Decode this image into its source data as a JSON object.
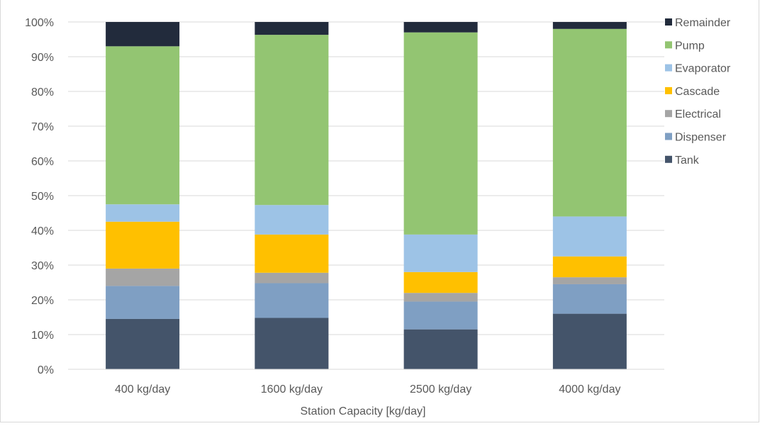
{
  "chart_data": {
    "type": "bar",
    "stacked": true,
    "percent": true,
    "title": "",
    "xlabel": "Station Capacity [kg/day]",
    "ylabel": "",
    "ylim": [
      0,
      100
    ],
    "yticks": [
      "0%",
      "10%",
      "20%",
      "30%",
      "40%",
      "50%",
      "60%",
      "70%",
      "80%",
      "90%",
      "100%"
    ],
    "categories": [
      "400 kg/day",
      "1600 kg/day",
      "2500 kg/day",
      "4000 kg/day"
    ],
    "grid": true,
    "legend_position": "right",
    "series": [
      {
        "name": "Tank",
        "color": "#44546a",
        "values": [
          14.5,
          14.8,
          11.5,
          16.0
        ]
      },
      {
        "name": "Dispenser",
        "color": "#7f9fc3",
        "values": [
          9.5,
          10.0,
          8.0,
          8.5
        ]
      },
      {
        "name": "Electrical",
        "color": "#a5a5a5",
        "values": [
          5.0,
          3.0,
          2.5,
          2.0
        ]
      },
      {
        "name": "Cascade",
        "color": "#ffc000",
        "values": [
          13.5,
          11.0,
          6.0,
          6.0
        ]
      },
      {
        "name": "Evaporator",
        "color": "#9dc3e6",
        "values": [
          5.0,
          8.5,
          10.8,
          11.5
        ]
      },
      {
        "name": " Pump",
        "color": "#93c572",
        "values": [
          45.5,
          49.0,
          58.2,
          54.0
        ]
      },
      {
        "name": "Remainder",
        "color": "#222b3c",
        "values": [
          7.0,
          3.7,
          3.0,
          2.0
        ]
      }
    ]
  }
}
